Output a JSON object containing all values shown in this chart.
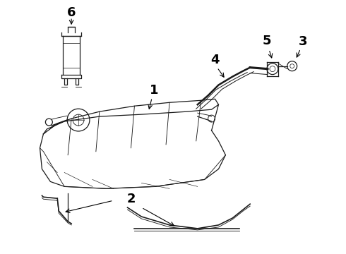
{
  "bg_color": "#ffffff",
  "line_color": "#1a1a1a",
  "label_color": "#000000",
  "label_fontsize": 13,
  "figsize": [
    4.9,
    3.6
  ],
  "dpi": 100
}
